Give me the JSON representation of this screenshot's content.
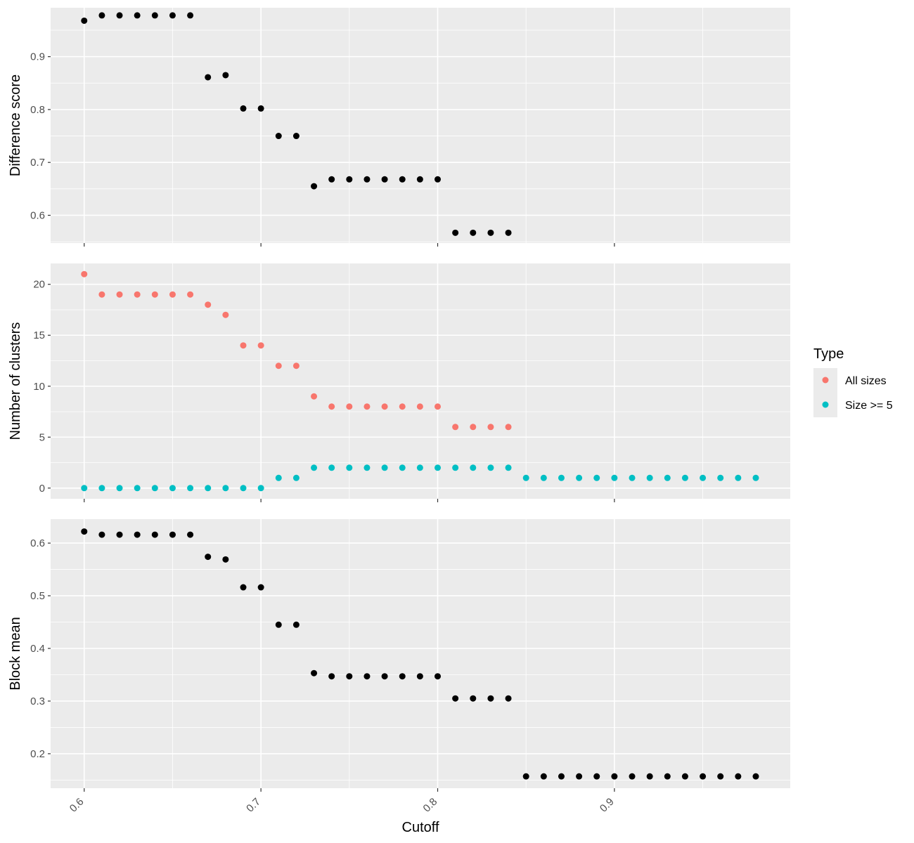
{
  "chart_data": {
    "type": "scatter",
    "xlabel": "Cutoff",
    "x_ticks": [
      0.6,
      0.7,
      0.8,
      0.9
    ],
    "x_tick_labels": [
      "0.6",
      "0.7",
      "0.8",
      "0.9"
    ],
    "xlim": [
      0.581,
      0.9995
    ],
    "grid": true,
    "legend": {
      "title": "Type",
      "placement": "right",
      "entries": [
        {
          "label": "All sizes",
          "color": "#F8766D"
        },
        {
          "label": "Size >= 5",
          "color": "#00BFC4"
        }
      ]
    },
    "panels": [
      {
        "ylabel": "Difference score",
        "ylim": [
          0.5475,
          0.9925
        ],
        "y_ticks": [
          0.6,
          0.7,
          0.8,
          0.9
        ],
        "y_tick_labels": [
          "0.6",
          "0.7",
          "0.8",
          "0.9"
        ],
        "series": [
          {
            "color": "#000000",
            "x": [
              0.6,
              0.61,
              0.62,
              0.63,
              0.64,
              0.65,
              0.66,
              0.67,
              0.68,
              0.69,
              0.7,
              0.71,
              0.72,
              0.73,
              0.74,
              0.75,
              0.76,
              0.77,
              0.78,
              0.79,
              0.8,
              0.81,
              0.82,
              0.83,
              0.84
            ],
            "y": [
              0.968,
              0.978,
              0.978,
              0.978,
              0.978,
              0.978,
              0.978,
              0.861,
              0.865,
              0.802,
              0.802,
              0.75,
              0.75,
              0.655,
              0.668,
              0.668,
              0.668,
              0.668,
              0.668,
              0.668,
              0.668,
              0.567,
              0.567,
              0.567,
              0.567
            ]
          }
        ]
      },
      {
        "ylabel": "Number of clusters",
        "ylim": [
          -1.05,
          22.05
        ],
        "y_ticks": [
          0,
          5,
          10,
          15,
          20
        ],
        "y_tick_labels": [
          "0",
          "5",
          "10",
          "15",
          "20"
        ],
        "series": [
          {
            "name": "All sizes",
            "color": "#F8766D",
            "x": [
              0.6,
              0.61,
              0.62,
              0.63,
              0.64,
              0.65,
              0.66,
              0.67,
              0.68,
              0.69,
              0.7,
              0.71,
              0.72,
              0.73,
              0.74,
              0.75,
              0.76,
              0.77,
              0.78,
              0.79,
              0.8,
              0.81,
              0.82,
              0.83,
              0.84
            ],
            "y": [
              21,
              19,
              19,
              19,
              19,
              19,
              19,
              18,
              17,
              14,
              14,
              12,
              12,
              9,
              8,
              8,
              8,
              8,
              8,
              8,
              8,
              6,
              6,
              6,
              6
            ]
          },
          {
            "name": "Size >= 5",
            "color": "#00BFC4",
            "x": [
              0.6,
              0.61,
              0.62,
              0.63,
              0.64,
              0.65,
              0.66,
              0.67,
              0.68,
              0.69,
              0.7,
              0.71,
              0.72,
              0.73,
              0.74,
              0.75,
              0.76,
              0.77,
              0.78,
              0.79,
              0.8,
              0.81,
              0.82,
              0.83,
              0.84,
              0.85,
              0.86,
              0.87,
              0.88,
              0.89,
              0.9,
              0.91,
              0.92,
              0.93,
              0.94,
              0.95,
              0.96,
              0.97,
              0.98
            ],
            "y": [
              0,
              0,
              0,
              0,
              0,
              0,
              0,
              0,
              0,
              0,
              0,
              1,
              1,
              2,
              2,
              2,
              2,
              2,
              2,
              2,
              2,
              2,
              2,
              2,
              2,
              1,
              1,
              1,
              1,
              1,
              1,
              1,
              1,
              1,
              1,
              1,
              1,
              1,
              1
            ]
          }
        ]
      },
      {
        "ylabel": "Block mean",
        "ylim": [
          0.1345,
          0.6455
        ],
        "y_ticks": [
          0.2,
          0.3,
          0.4,
          0.5,
          0.6
        ],
        "y_tick_labels": [
          "0.2",
          "0.3",
          "0.4",
          "0.5",
          "0.6"
        ],
        "series": [
          {
            "color": "#000000",
            "x": [
              0.6,
              0.61,
              0.62,
              0.63,
              0.64,
              0.65,
              0.66,
              0.67,
              0.68,
              0.69,
              0.7,
              0.71,
              0.72,
              0.73,
              0.74,
              0.75,
              0.76,
              0.77,
              0.78,
              0.79,
              0.8,
              0.81,
              0.82,
              0.83,
              0.84,
              0.85,
              0.86,
              0.87,
              0.88,
              0.89,
              0.9,
              0.91,
              0.92,
              0.93,
              0.94,
              0.95,
              0.96,
              0.97,
              0.98
            ],
            "y": [
              0.622,
              0.616,
              0.616,
              0.616,
              0.616,
              0.616,
              0.616,
              0.574,
              0.569,
              0.516,
              0.516,
              0.445,
              0.445,
              0.353,
              0.347,
              0.347,
              0.347,
              0.347,
              0.347,
              0.347,
              0.347,
              0.305,
              0.305,
              0.305,
              0.305,
              0.157,
              0.157,
              0.157,
              0.157,
              0.157,
              0.157,
              0.157,
              0.157,
              0.157,
              0.157,
              0.157,
              0.157,
              0.157,
              0.157
            ]
          }
        ]
      }
    ]
  }
}
